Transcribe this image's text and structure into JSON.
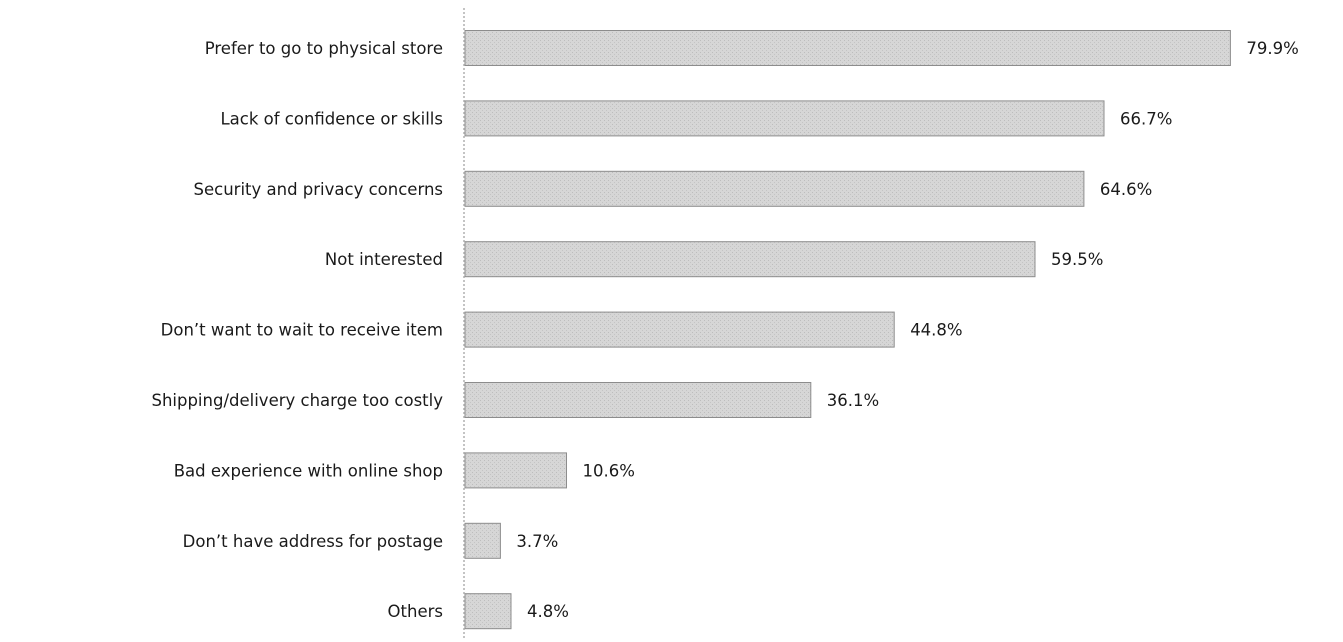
{
  "chart_data": {
    "type": "bar",
    "orientation": "horizontal",
    "title": "",
    "xlabel": "",
    "ylabel": "",
    "categories": [
      "Prefer to go to physical store",
      "Lack of confidence or skills",
      "Security and privacy concerns",
      "Not interested",
      "Don’t want to wait to receive item",
      "Shipping/delivery charge too costly",
      "Bad experience with online shop",
      "Don’t have address for postage",
      "Others"
    ],
    "values": [
      79.9,
      66.7,
      64.6,
      59.5,
      44.8,
      36.1,
      10.6,
      3.7,
      4.8
    ],
    "value_labels": [
      "79.9%",
      "66.7%",
      "64.6%",
      "59.5%",
      "44.8%",
      "36.1%",
      "10.6%",
      "3.7%",
      "4.8%"
    ],
    "xlim": [
      0,
      80
    ],
    "grid": false,
    "legend": "none",
    "colors": {
      "bar_fill": "#d3d3d3",
      "bar_edge": "#8c8c8c",
      "text": "#1a1a1a"
    }
  }
}
